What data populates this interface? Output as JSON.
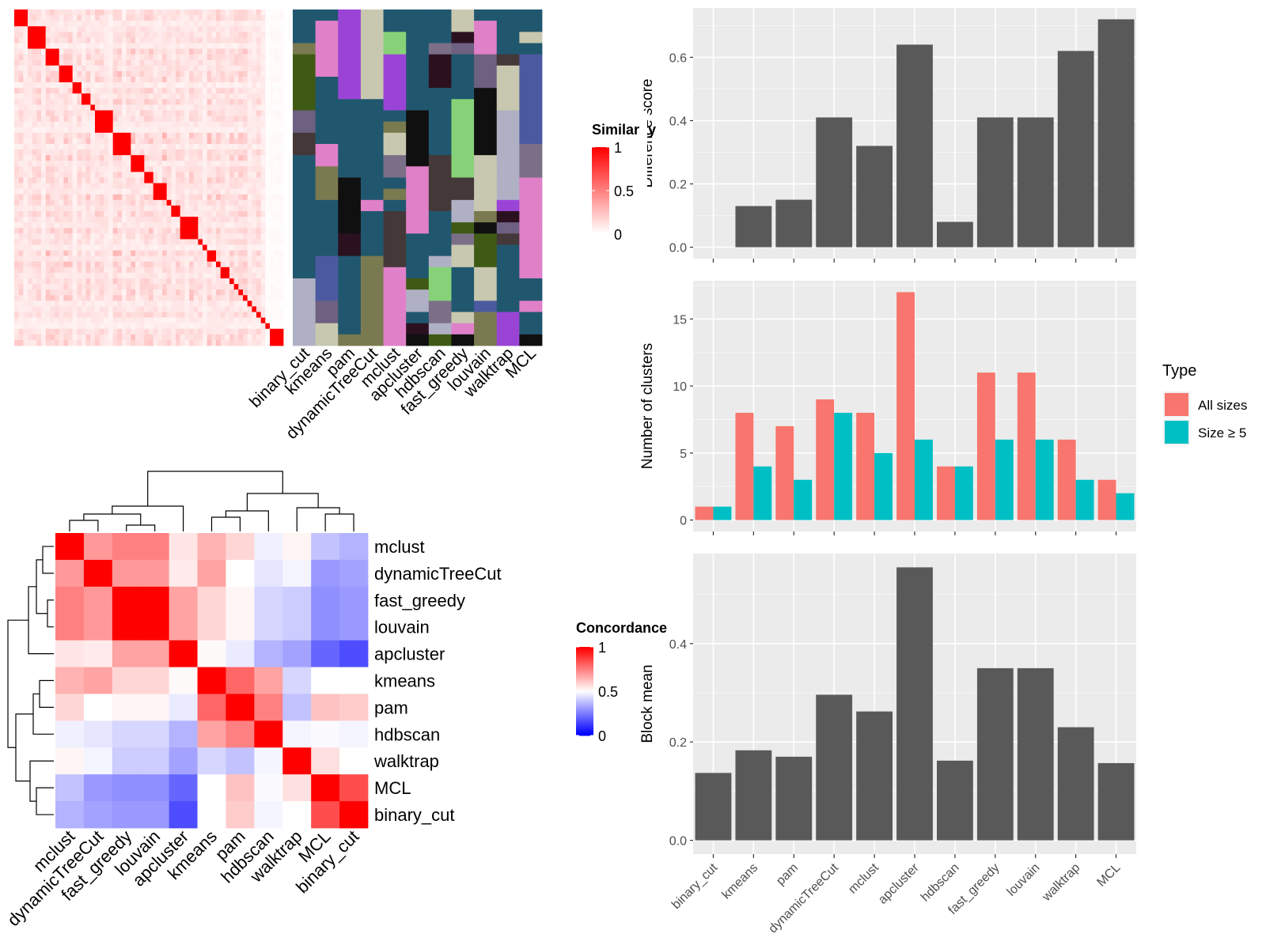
{
  "similarity_legend": {
    "title": "Similarity",
    "ticks": [
      "1",
      "0.5",
      "0"
    ],
    "low_color": "#ffffff",
    "high_color": "#ff0000"
  },
  "membership_columns": [
    "binary_cut",
    "kmeans",
    "pam",
    "dynamicTreeCut",
    "mclust",
    "apcluster",
    "hdbscan",
    "fast_greedy",
    "louvain",
    "walktrap",
    "MCL"
  ],
  "concordance_legend": {
    "title": "Concordance",
    "ticks": [
      "1",
      "0.5",
      "0"
    ],
    "low_color": "#0000ff",
    "mid_color": "#ffffff",
    "high_color": "#ff0000"
  },
  "type_legend": {
    "title": "Type",
    "items": [
      "All sizes",
      "Size ≥ 5"
    ],
    "colors": [
      "#f8766d",
      "#00bfc4"
    ]
  },
  "chart_data": [
    {
      "type": "heatmap",
      "name": "similarity_matrix",
      "description_blocks": [
        3,
        4,
        3,
        3,
        2,
        2,
        1,
        4,
        4,
        3,
        2,
        3,
        1,
        2,
        4,
        1,
        1,
        2,
        1,
        2,
        1,
        1,
        1,
        1,
        1,
        1,
        1,
        1,
        1,
        3
      ],
      "scale": [
        0,
        1
      ]
    },
    {
      "type": "heatmap",
      "name": "concordance",
      "rows": [
        "mclust",
        "dynamicTreeCut",
        "fast_greedy",
        "louvain",
        "apcluster",
        "kmeans",
        "pam",
        "hdbscan",
        "walktrap",
        "MCL",
        "binary_cut"
      ],
      "columns": [
        "mclust",
        "dynamicTreeCut",
        "fast_greedy",
        "louvain",
        "apcluster",
        "kmeans",
        "pam",
        "hdbscan",
        "walktrap",
        "MCL",
        "binary_cut"
      ],
      "values": [
        [
          1.0,
          0.7,
          0.75,
          0.75,
          0.55,
          0.65,
          0.58,
          0.47,
          0.52,
          0.38,
          0.35
        ],
        [
          0.7,
          1.0,
          0.7,
          0.7,
          0.54,
          0.68,
          0.5,
          0.45,
          0.48,
          0.3,
          0.32
        ],
        [
          0.75,
          0.7,
          1.0,
          1.0,
          0.68,
          0.58,
          0.52,
          0.42,
          0.4,
          0.28,
          0.3
        ],
        [
          0.75,
          0.7,
          1.0,
          1.0,
          0.68,
          0.58,
          0.52,
          0.42,
          0.4,
          0.28,
          0.3
        ],
        [
          0.55,
          0.54,
          0.68,
          0.68,
          1.0,
          0.51,
          0.46,
          0.35,
          0.32,
          0.2,
          0.15
        ],
        [
          0.65,
          0.68,
          0.58,
          0.58,
          0.51,
          1.0,
          0.8,
          0.68,
          0.42,
          0.5,
          0.5
        ],
        [
          0.58,
          0.5,
          0.52,
          0.52,
          0.46,
          0.8,
          1.0,
          0.75,
          0.38,
          0.62,
          0.6
        ],
        [
          0.47,
          0.45,
          0.42,
          0.42,
          0.35,
          0.68,
          0.75,
          1.0,
          0.48,
          0.49,
          0.48
        ],
        [
          0.52,
          0.48,
          0.4,
          0.4,
          0.32,
          0.42,
          0.38,
          0.48,
          1.0,
          0.56,
          0.5
        ],
        [
          0.38,
          0.3,
          0.28,
          0.28,
          0.2,
          0.5,
          0.62,
          0.49,
          0.56,
          1.0,
          0.85
        ],
        [
          0.35,
          0.32,
          0.3,
          0.3,
          0.15,
          0.5,
          0.6,
          0.48,
          0.5,
          0.85,
          1.0
        ]
      ],
      "scale": [
        0,
        1
      ]
    },
    {
      "type": "bar",
      "categories": [
        "binary_cut",
        "kmeans",
        "pam",
        "dynamicTreeCut",
        "mclust",
        "apcluster",
        "hdbscan",
        "fast_greedy",
        "louvain",
        "walktrap",
        "MCL"
      ],
      "values": [
        0.0,
        0.13,
        0.15,
        0.41,
        0.32,
        0.64,
        0.08,
        0.41,
        0.41,
        0.62,
        0.72
      ],
      "ylabel": "Difference score",
      "yticks": [
        "0.0",
        "0.2",
        "0.4",
        "0.6"
      ],
      "ylim": [
        -0.036,
        0.756
      ],
      "color": "#595959"
    },
    {
      "type": "bar",
      "categories": [
        "binary_cut",
        "kmeans",
        "pam",
        "dynamicTreeCut",
        "mclust",
        "apcluster",
        "hdbscan",
        "fast_greedy",
        "louvain",
        "walktrap",
        "MCL"
      ],
      "series": [
        {
          "name": "All sizes",
          "values": [
            1,
            8,
            7,
            9,
            8,
            17,
            4,
            11,
            11,
            6,
            3
          ]
        },
        {
          "name": "Size ≥ 5",
          "values": [
            1,
            4,
            3,
            8,
            5,
            6,
            4,
            6,
            6,
            3,
            2
          ]
        }
      ],
      "ylabel": "Number of clusters",
      "yticks": [
        "0",
        "5",
        "10",
        "15"
      ],
      "ylim": [
        -0.85,
        17.85
      ]
    },
    {
      "type": "bar",
      "categories": [
        "binary_cut",
        "kmeans",
        "pam",
        "dynamicTreeCut",
        "mclust",
        "apcluster",
        "hdbscan",
        "fast_greedy",
        "louvain",
        "walktrap",
        "MCL"
      ],
      "values": [
        0.137,
        0.183,
        0.17,
        0.296,
        0.262,
        0.555,
        0.162,
        0.35,
        0.35,
        0.23,
        0.157
      ],
      "ylabel": "Block mean",
      "yticks": [
        "0.0",
        "0.2",
        "0.4"
      ],
      "ylim": [
        -0.028,
        0.583
      ],
      "xlabels": [
        "binary_cut",
        "kmeans",
        "pam",
        "dynamicTreeCut",
        "mclust",
        "apcluster",
        "hdbscan",
        "fast_greedy",
        "louvain",
        "walktrap",
        "MCL"
      ],
      "color": "#595959"
    }
  ]
}
